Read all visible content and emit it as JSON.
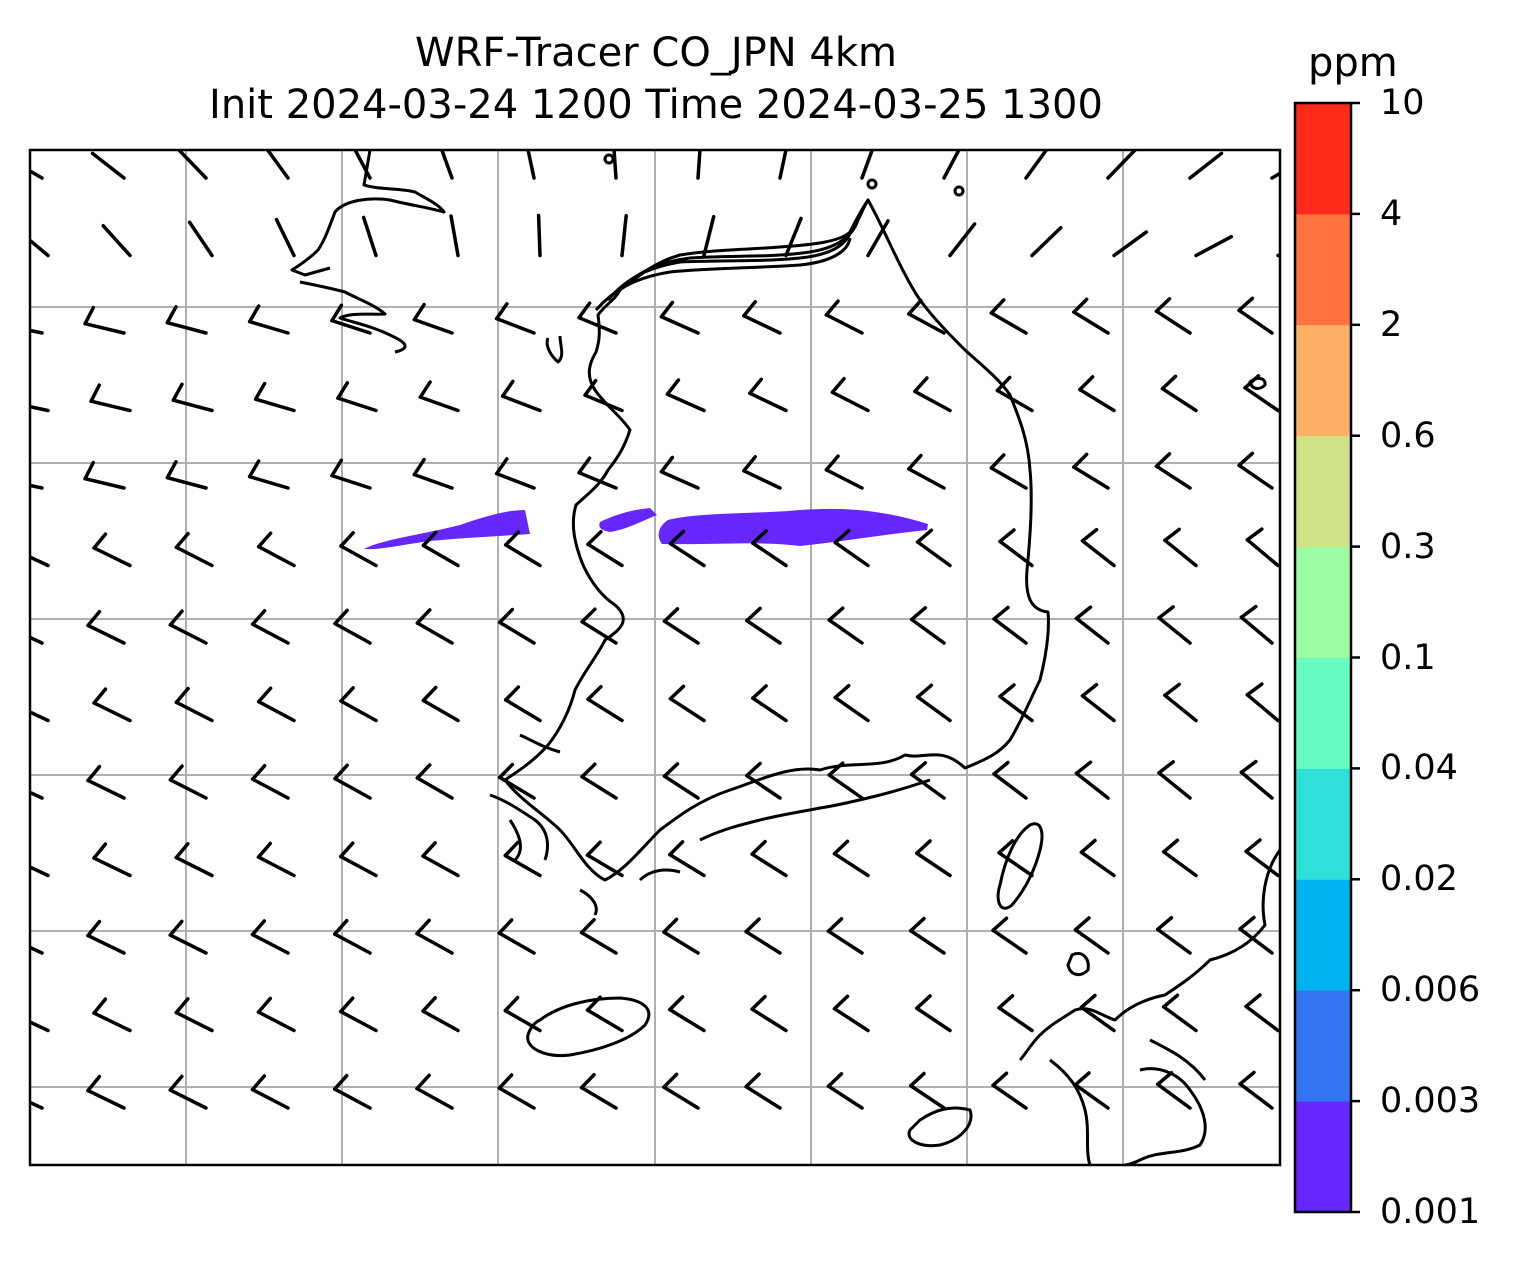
{
  "title": {
    "line1": "WRF-Tracer CO_JPN 4km",
    "line2": "Init 2024-03-24 1200 Time 2024-03-25 1300"
  },
  "colorbar": {
    "unit": "ppm",
    "levels": [
      "0.001",
      "0.003",
      "0.006",
      "0.02",
      "0.04",
      "0.1",
      "0.3",
      "0.6",
      "2",
      "4",
      "10"
    ],
    "colors": [
      "#6527fb",
      "#3374f2",
      "#00b2ee",
      "#2fe0d8",
      "#67fdc0",
      "#9cfca3",
      "#d0e386",
      "#fdb065",
      "#ff7340",
      "#ff2a1a"
    ]
  },
  "map": {
    "tracer_color": "#6527fb",
    "gridline_color": "#b0b0b0",
    "coastline_color": "#000000"
  }
}
